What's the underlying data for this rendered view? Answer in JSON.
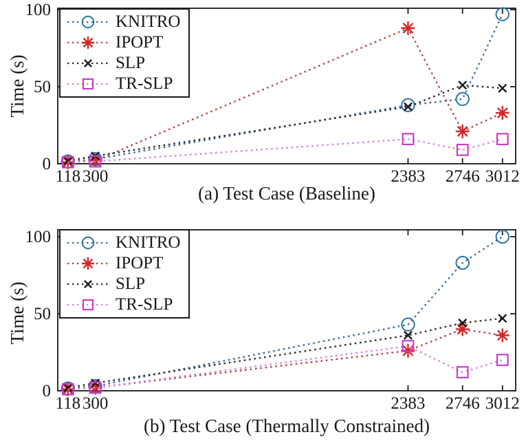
{
  "figure_background": "#ffffff",
  "axis_color": "#1a1a1a",
  "chart_data": [
    {
      "type": "line",
      "title": "(a) Test Case (Baseline)",
      "ylabel": "Time (s)",
      "x": [
        118,
        300,
        2383,
        2746,
        3012
      ],
      "xtick_labels": [
        "118",
        "300",
        "2383",
        "2746",
        "3012"
      ],
      "yticks": [
        0,
        50,
        100
      ],
      "xlim": [
        50,
        3100
      ],
      "ylim": [
        0,
        101
      ],
      "grid": false,
      "line_style": "dotted",
      "legend_position": "top-left",
      "series": [
        {
          "name": "KNITRO",
          "marker": "circle",
          "color": "#2e74a4",
          "line_color": "#3a6b99",
          "values": [
            1.5,
            3,
            38,
            42,
            97
          ]
        },
        {
          "name": "IPOPT",
          "marker": "asterisk",
          "color": "#d42626",
          "line_color": "#b04545",
          "values": [
            1,
            2,
            88,
            21,
            33
          ]
        },
        {
          "name": "SLP",
          "marker": "x",
          "color": "#1a1a1a",
          "line_color": "#2f2f2f",
          "values": [
            2,
            5,
            37,
            51,
            49
          ]
        },
        {
          "name": "TR-SLP",
          "marker": "square",
          "color": "#c83fc8",
          "line_color": "#d983d9",
          "values": [
            1,
            1.5,
            16,
            9,
            16
          ]
        }
      ]
    },
    {
      "type": "line",
      "title": "(b) Test Case (Thermally Constrained)",
      "ylabel": "Time (s)",
      "x": [
        118,
        300,
        2383,
        2746,
        3012
      ],
      "xtick_labels": [
        "118",
        "300",
        "2383",
        "2746",
        "3012"
      ],
      "yticks": [
        0,
        50,
        100
      ],
      "xlim": [
        50,
        3100
      ],
      "ylim": [
        0,
        105
      ],
      "grid": false,
      "line_style": "dotted",
      "legend_position": "top-left",
      "series": [
        {
          "name": "KNITRO",
          "marker": "circle",
          "color": "#2e74a4",
          "line_color": "#3a6b99",
          "values": [
            1.5,
            3,
            43,
            83,
            100
          ]
        },
        {
          "name": "IPOPT",
          "marker": "asterisk",
          "color": "#d42626",
          "line_color": "#b04545",
          "values": [
            1,
            2,
            26,
            40,
            36
          ]
        },
        {
          "name": "SLP",
          "marker": "x",
          "color": "#1a1a1a",
          "line_color": "#2f2f2f",
          "values": [
            2,
            5,
            36,
            44,
            47
          ]
        },
        {
          "name": "TR-SLP",
          "marker": "square",
          "color": "#c83fc8",
          "line_color": "#d983d9",
          "values": [
            1,
            2,
            29,
            12,
            20
          ]
        }
      ]
    }
  ]
}
